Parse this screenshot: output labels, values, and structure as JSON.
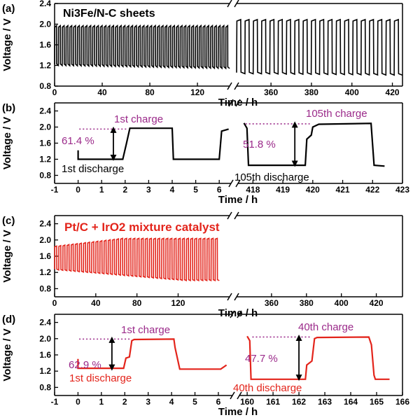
{
  "colors": {
    "black_series": "#000000",
    "red_series": "#e3241b",
    "annotation": "#9b2a8a",
    "axis": "#000000"
  },
  "chart_data": [
    {
      "panel": "(a)",
      "type": "line",
      "label": "Ni3Fe/N-C sheets",
      "label_color": "#000000",
      "ylabel": "Voltage / V",
      "xlabel": "Time / h",
      "ylim": [
        0.8,
        2.4
      ],
      "yticks": [
        "0.8",
        "1.2",
        "1.6",
        "2.0",
        "2.4"
      ],
      "broken_x_axis": true,
      "segments": [
        {
          "xlim": [
            0,
            147
          ],
          "xticks": [
            "0",
            "40",
            "80",
            "120"
          ],
          "charge_V": 1.97,
          "discharge_V": 1.2,
          "cycles": 46,
          "drift": 0.06
        },
        {
          "xlim": [
            343,
            425
          ],
          "xticks": [
            "360",
            "380",
            "400",
            "420"
          ],
          "charge_V": 2.09,
          "discharge_V": 1.04,
          "cycles": 20,
          "drift": 0.03
        }
      ],
      "series": [
        {
          "color": "#000000"
        }
      ]
    },
    {
      "panel": "(b)",
      "type": "line",
      "ylabel": "Voltage / V",
      "xlabel": "Time / h",
      "ylim": [
        0.6,
        2.6
      ],
      "yticks": [
        "0.8",
        "1.2",
        "1.6",
        "2.0",
        "2.4"
      ],
      "broken_x_axis": true,
      "segments": [
        {
          "xlim": [
            -1,
            6.5
          ],
          "xticks": [
            "-1",
            "0",
            "1",
            "2",
            "3",
            "4",
            "5",
            "6"
          ],
          "points": [
            [
              0,
              1.42
            ],
            [
              0,
              1.2
            ],
            [
              1.9,
              1.2
            ],
            [
              2.05,
              1.58
            ],
            [
              2.2,
              1.97
            ],
            [
              4.0,
              1.97
            ],
            [
              4.05,
              1.2
            ],
            [
              6.0,
              1.2
            ],
            [
              6.1,
              1.9
            ],
            [
              6.4,
              1.95
            ]
          ]
        },
        {
          "xlim": [
            417.5,
            423
          ],
          "xticks": [
            "418",
            "419",
            "420",
            "421",
            "422",
            "423"
          ],
          "points": [
            [
              417.7,
              2.1
            ],
            [
              417.8,
              1.97
            ],
            [
              417.85,
              1.05
            ],
            [
              419.75,
              1.05
            ],
            [
              419.8,
              1.7
            ],
            [
              419.95,
              1.8
            ],
            [
              420.0,
              2.0
            ],
            [
              420.2,
              2.07
            ],
            [
              421.95,
              2.09
            ],
            [
              422.05,
              1.05
            ],
            [
              422.4,
              1.03
            ]
          ]
        }
      ],
      "annotations": [
        {
          "text": "1st charge",
          "color": "#9b2a8a"
        },
        {
          "text": "61.4 %",
          "color": "#9b2a8a"
        },
        {
          "text": "1st discharge",
          "color": "#000000"
        },
        {
          "text": "105th charge",
          "color": "#9b2a8a"
        },
        {
          "text": "51.8 %",
          "color": "#9b2a8a"
        },
        {
          "text": "105th discharge",
          "color": "#000000"
        }
      ],
      "series": [
        {
          "color": "#000000"
        }
      ]
    },
    {
      "panel": "(c)",
      "type": "line",
      "label": "Pt/C + IrO2 mixture catalyst",
      "label_color": "#e3241b",
      "ylabel": "Voltage / V",
      "xlabel": "Time / h",
      "ylim": [
        0.6,
        2.6
      ],
      "yticks": [
        "0.8",
        "1.2",
        "1.6",
        "2.0",
        "2.4"
      ],
      "broken_x_axis": true,
      "segments": [
        {
          "xlim": [
            0,
            170
          ],
          "xticks": [
            "0",
            "40",
            "80",
            "120"
          ],
          "charge_V": 2.04,
          "discharge_V": 1.0,
          "cycles": 40,
          "drift": 0.0,
          "data_end": 160
        },
        {
          "xlim": [
            340,
            435
          ],
          "xticks": [
            "360",
            "380",
            "400",
            "420"
          ]
        }
      ],
      "series": [
        {
          "color": "#e3241b"
        }
      ]
    },
    {
      "panel": "(d)",
      "type": "line",
      "ylabel": "Voltage / V",
      "xlabel": "Time / h",
      "ylim": [
        0.6,
        2.6
      ],
      "yticks": [
        "0.8",
        "1.2",
        "1.6",
        "2.0",
        "2.4"
      ],
      "broken_x_axis": true,
      "segments": [
        {
          "xlim": [
            -1,
            6.6
          ],
          "xticks": [
            "-1",
            "0",
            "1",
            "2",
            "3",
            "4",
            "5",
            "6"
          ],
          "points": [
            [
              0,
              1.5
            ],
            [
              0,
              1.27
            ],
            [
              1.95,
              1.27
            ],
            [
              2.05,
              1.52
            ],
            [
              2.2,
              1.55
            ],
            [
              2.3,
              1.95
            ],
            [
              2.4,
              1.98
            ],
            [
              4.1,
              1.99
            ],
            [
              4.15,
              1.78
            ],
            [
              4.35,
              1.25
            ],
            [
              6.1,
              1.25
            ],
            [
              6.35,
              1.35
            ]
          ]
        },
        {
          "xlim": [
            159.7,
            166
          ],
          "xticks": [
            "160",
            "161",
            "162",
            "163",
            "164",
            "165",
            "166"
          ],
          "points": [
            [
              160.0,
              2.06
            ],
            [
              160.1,
              1.95
            ],
            [
              160.15,
              1.0
            ],
            [
              162.25,
              1.0
            ],
            [
              162.3,
              1.35
            ],
            [
              162.5,
              1.45
            ],
            [
              162.6,
              2.0
            ],
            [
              162.7,
              2.03
            ],
            [
              164.7,
              2.04
            ],
            [
              164.8,
              1.85
            ],
            [
              164.9,
              1.1
            ],
            [
              164.95,
              1.0
            ],
            [
              165.5,
              1.0
            ]
          ]
        }
      ],
      "annotations": [
        {
          "text": "1st charge",
          "color": "#9b2a8a"
        },
        {
          "text": "62.9 %",
          "color": "#9b2a8a"
        },
        {
          "text": "1st discharge",
          "color": "#e3241b"
        },
        {
          "text": "40th charge",
          "color": "#9b2a8a"
        },
        {
          "text": "47.7 %",
          "color": "#9b2a8a"
        },
        {
          "text": "40th discharge",
          "color": "#e3241b"
        }
      ],
      "series": [
        {
          "color": "#e3241b"
        }
      ]
    }
  ]
}
